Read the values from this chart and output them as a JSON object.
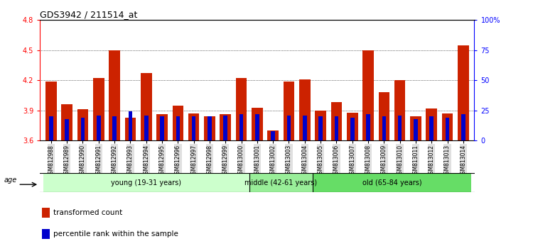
{
  "title": "GDS3942 / 211514_at",
  "samples": [
    "GSM812988",
    "GSM812989",
    "GSM812990",
    "GSM812991",
    "GSM812992",
    "GSM812993",
    "GSM812994",
    "GSM812995",
    "GSM812996",
    "GSM812997",
    "GSM812998",
    "GSM812999",
    "GSM813000",
    "GSM813001",
    "GSM813002",
    "GSM813003",
    "GSM813004",
    "GSM813005",
    "GSM813006",
    "GSM813007",
    "GSM813008",
    "GSM813009",
    "GSM813010",
    "GSM813011",
    "GSM813012",
    "GSM813013",
    "GSM813014"
  ],
  "transformed_counts": [
    4.19,
    3.96,
    3.91,
    4.22,
    4.5,
    3.83,
    4.27,
    3.86,
    3.95,
    3.87,
    3.84,
    3.86,
    4.22,
    3.93,
    3.7,
    4.19,
    4.21,
    3.9,
    3.98,
    3.88,
    4.5,
    4.08,
    4.2,
    3.84,
    3.92,
    3.87,
    4.55
  ],
  "percentile_ranks": [
    20,
    18,
    19,
    21,
    20,
    24,
    21,
    20,
    20,
    20,
    20,
    21,
    22,
    22,
    8,
    21,
    21,
    20,
    20,
    19,
    22,
    20,
    21,
    18,
    20,
    19,
    22
  ],
  "groups": [
    {
      "label": "young (19-31 years)",
      "start": 0,
      "end": 13,
      "color": "#ccffcc"
    },
    {
      "label": "middle (42-61 years)",
      "start": 13,
      "end": 17,
      "color": "#99ee99"
    },
    {
      "label": "old (65-84 years)",
      "start": 17,
      "end": 27,
      "color": "#66dd66"
    }
  ],
  "ylim_left": [
    3.6,
    4.8
  ],
  "ylim_right": [
    0,
    100
  ],
  "yticks_left": [
    3.6,
    3.9,
    4.2,
    4.5,
    4.8
  ],
  "yticks_right": [
    0,
    25,
    50,
    75,
    100
  ],
  "ytick_labels_right": [
    "0",
    "25",
    "50",
    "75",
    "100%"
  ],
  "bar_color_red": "#cc2200",
  "bar_color_blue": "#0000cc",
  "bar_width": 0.7,
  "blue_bar_width": 0.25,
  "baseline": 3.6,
  "legend_items": [
    {
      "label": "transformed count",
      "color": "#cc2200"
    },
    {
      "label": "percentile rank within the sample",
      "color": "#0000cc"
    }
  ],
  "age_label": "age",
  "tick_bg_color": "#e0e0e0"
}
